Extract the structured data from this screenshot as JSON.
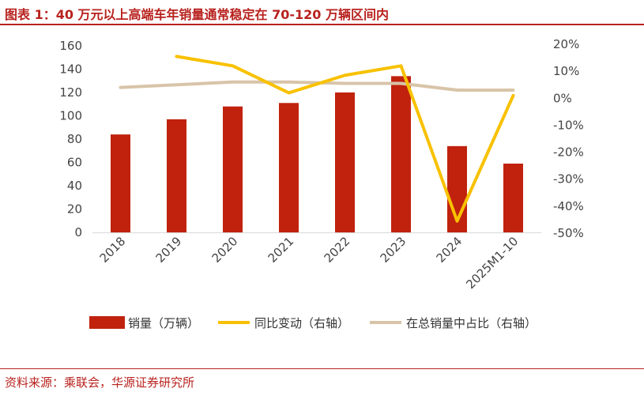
{
  "header": {
    "title": "图表 1：40 万元以上高端车年销量通常稳定在 70-120 万辆区间内"
  },
  "footer": {
    "source": "资料来源：乘联会，华源证券研究所"
  },
  "colors": {
    "accent": "#b8221e",
    "bar": "#c0220e",
    "yoy_line": "#f8c100",
    "share_line": "#d8c4a8"
  },
  "chart_data": {
    "type": "bar",
    "categories": [
      "2018",
      "2019",
      "2020",
      "2021",
      "2022",
      "2023",
      "2024",
      "2025M1-10"
    ],
    "series": [
      {
        "name": "销量（万辆）",
        "type": "bar",
        "axis": "left",
        "values": [
          84,
          97,
          108,
          111,
          120,
          134,
          74,
          59
        ]
      },
      {
        "name": "同比变动（右轴）",
        "type": "line",
        "axis": "right",
        "unit": "%",
        "values": [
          null,
          15.5,
          12,
          2,
          8.5,
          12,
          -45.5,
          1
        ]
      },
      {
        "name": "在总销量中占比（右轴）",
        "type": "line",
        "axis": "right",
        "unit": "%",
        "values": [
          4,
          5,
          6,
          6,
          5.5,
          5.5,
          3,
          3
        ]
      }
    ],
    "left_axis": {
      "min": 0,
      "max": 160,
      "ticks": [
        0,
        20,
        40,
        60,
        80,
        100,
        120,
        140,
        160
      ]
    },
    "right_axis": {
      "min": -50,
      "max": 20,
      "ticks": [
        20,
        10,
        0,
        -10,
        -20,
        -30,
        -40,
        -50
      ],
      "tick_labels": [
        "20%",
        "10%",
        "0%",
        "-10%",
        "-20%",
        "-30%",
        "-40%",
        "-50%"
      ]
    },
    "grid": false,
    "legend_position": "bottom"
  }
}
